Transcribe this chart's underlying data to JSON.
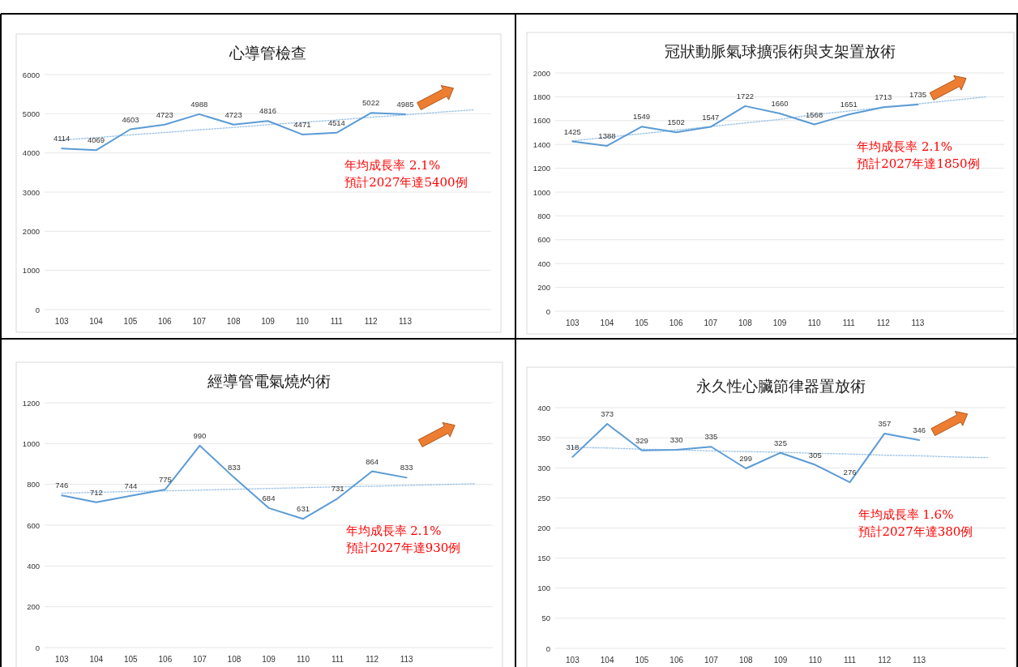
{
  "chart_data": [
    {
      "type": "line",
      "title": "心導管檢查",
      "categories": [
        "103",
        "104",
        "105",
        "106",
        "107",
        "108",
        "109",
        "110",
        "111",
        "112",
        "113",
        null,
        null
      ],
      "ylim": [
        0,
        6000
      ],
      "yticks": [
        0,
        1000,
        2000,
        3000,
        4000,
        5000,
        6000
      ],
      "grid": "y",
      "marker": "none",
      "series": [
        {
          "color": "#5b9bd5",
          "values": [
            4114,
            4069,
            4603,
            4723,
            4988,
            4723,
            4816,
            4471,
            4514,
            5022,
            4985,
            null,
            null
          ],
          "value_labels": [
            "4114",
            "4069",
            "4603",
            "4723",
            "4988",
            "4723",
            "4816",
            "4471",
            "4514",
            "5022",
            "4985",
            null,
            null
          ]
        },
        {
          "color": "#9dc3e6",
          "line_style": "dotted",
          "values": [
            4330,
            4390,
            4460,
            4520,
            4590,
            4650,
            4720,
            4780,
            4840,
            4910,
            4970,
            5040,
            5100
          ]
        }
      ],
      "annotations": [
        "年均成長率 2.1%",
        "預計2027年達5400例"
      ]
    },
    {
      "type": "line",
      "title": "冠狀動脈氣球擴張術與支架置放術",
      "categories": [
        "103",
        "104",
        "105",
        "106",
        "107",
        "108",
        "109",
        "110",
        "111",
        "112",
        "113",
        null,
        null
      ],
      "ylim": [
        0,
        2000
      ],
      "yticks": [
        0,
        200,
        400,
        600,
        800,
        1000,
        1200,
        1400,
        1600,
        1800,
        2000
      ],
      "grid": "y",
      "marker": "none",
      "series": [
        {
          "color": "#5b9bd5",
          "values": [
            1425,
            1388,
            1549,
            1502,
            1547,
            1722,
            1660,
            1568,
            1651,
            1713,
            1735,
            null,
            null
          ],
          "value_labels": [
            "1425",
            "1388",
            "1549",
            "1502",
            "1547",
            "1722",
            "1660",
            "1568",
            "1651",
            "1713",
            "1735",
            null,
            null
          ]
        },
        {
          "color": "#9dc3e6",
          "line_style": "dotted",
          "values": [
            1430,
            1460,
            1490,
            1520,
            1550,
            1580,
            1610,
            1650,
            1680,
            1710,
            1740,
            1770,
            1800
          ]
        }
      ],
      "annotations": [
        "年均成長率 2.1%",
        "預計2027年達1850例"
      ]
    },
    {
      "type": "line",
      "title": "經導管電氣燒灼術",
      "categories": [
        "103",
        "104",
        "105",
        "106",
        "107",
        "108",
        "109",
        "110",
        "111",
        "112",
        "113",
        null,
        null
      ],
      "ylim": [
        0,
        1200
      ],
      "yticks": [
        0,
        200,
        400,
        600,
        800,
        1000,
        1200
      ],
      "grid": "y",
      "marker": "none",
      "series": [
        {
          "color": "#5b9bd5",
          "values": [
            746,
            712,
            744,
            775,
            990,
            833,
            684,
            631,
            731,
            864,
            833,
            null,
            null
          ],
          "value_labels": [
            "746",
            "712",
            "744",
            "775",
            "990",
            "833",
            "684",
            "631",
            "731",
            "864",
            "833",
            null,
            null
          ]
        },
        {
          "color": "#9dc3e6",
          "line_style": "dotted",
          "values": [
            757,
            761,
            765,
            768,
            772,
            776,
            780,
            784,
            788,
            791,
            795,
            799,
            803
          ]
        }
      ],
      "annotations": [
        "年均成長率 2.1%",
        "預計2027年達930例"
      ]
    },
    {
      "type": "line",
      "title": "永久性心臟節律器置放術",
      "categories": [
        "103",
        "104",
        "105",
        "106",
        "107",
        "108",
        "109",
        "110",
        "111",
        "112",
        "113",
        null,
        null
      ],
      "ylim": [
        0,
        400
      ],
      "yticks": [
        0,
        50,
        100,
        150,
        200,
        250,
        300,
        350,
        400
      ],
      "grid": "y",
      "marker": "none",
      "series": [
        {
          "color": "#5b9bd5",
          "values": [
            318,
            373,
            329,
            330,
            335,
            299,
            325,
            305,
            276,
            357,
            346,
            null,
            null
          ],
          "value_labels": [
            "318",
            "373",
            "329",
            "330",
            "335",
            "299",
            "325",
            "305",
            "276",
            "357",
            "346",
            null,
            null
          ]
        },
        {
          "color": "#9dc3e6",
          "line_style": "dotted",
          "values": [
            334,
            333,
            331,
            330,
            328,
            327,
            326,
            324,
            323,
            321,
            320,
            318,
            317
          ]
        }
      ],
      "annotations": [
        "年均成長率 1.6%",
        "預計2027年達380例"
      ]
    }
  ]
}
